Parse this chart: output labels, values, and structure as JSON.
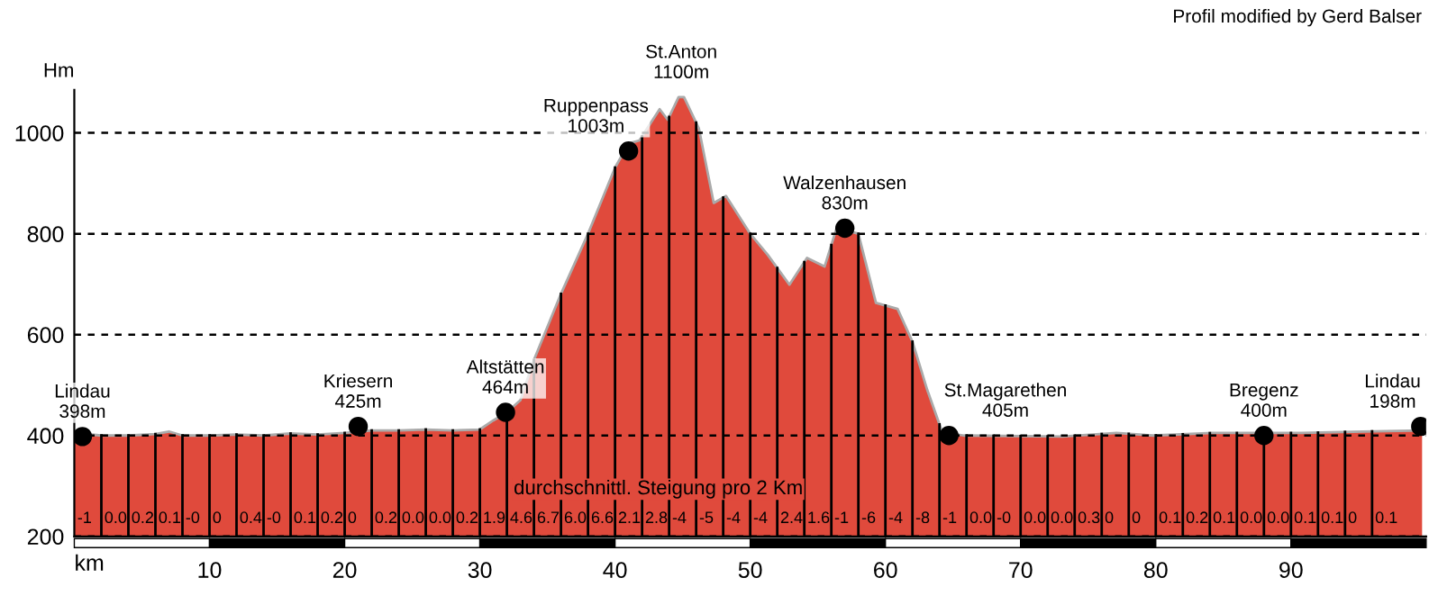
{
  "chart_data": {
    "type": "area",
    "xlabel": "km",
    "ylabel": "Hm",
    "xlim": [
      0,
      100
    ],
    "ylim": [
      200,
      1085
    ],
    "xticks": [
      10,
      20,
      30,
      40,
      50,
      60,
      70,
      80,
      90
    ],
    "yticks": [
      200,
      400,
      600,
      800,
      1000
    ],
    "grid": "y",
    "series": [
      {
        "color": "#e04a3c",
        "x": [
          0,
          2,
          4,
          6,
          7,
          8,
          10,
          12,
          14,
          16,
          18,
          20,
          22,
          24,
          26,
          28,
          30,
          31,
          32,
          33,
          34,
          36,
          38,
          40,
          41,
          41.8,
          43.3,
          43.9,
          44.7,
          45.1,
          46.2,
          47.3,
          48.2,
          50,
          51.3,
          52.9,
          54.2,
          55.5,
          56.4,
          58,
          59.3,
          60.9,
          62,
          63.1,
          64.2,
          65.8,
          73.1,
          77.1,
          79.8,
          84.2,
          90.8,
          95.3,
          99.7
        ],
        "values": [
          405,
          400,
          400,
          403,
          408,
          400,
          400,
          402,
          400,
          404,
          402,
          405,
          410,
          410,
          412,
          410,
          412,
          430,
          446,
          470,
          550,
          681,
          800,
          931,
          979,
          985,
          1047,
          1026,
          1071,
          1071,
          1009,
          861,
          875,
          800,
          758,
          699,
          752,
          735,
          812,
          800,
          663,
          651,
          586,
          490,
          407,
          400,
          398,
          405,
          400,
          405,
          405,
          408,
          410
        ]
      },
      {
        "type": "scatter",
        "color": "#000000",
        "marker": "circle",
        "x": [
          0.6,
          21,
          31.9,
          41,
          57,
          64.7,
          88,
          99.6
        ],
        "values": [
          398,
          418,
          446,
          964,
          811,
          400,
          400,
          418
        ]
      }
    ],
    "annotations": [
      "durchschnittl. Steigung pro 2 Km",
      "Profil modified by Gerd Balser",
      {
        "text": "Lindau\n398m",
        "x": 0.6,
        "y": 398
      },
      {
        "text": "Kriesern\n425m",
        "x": 21,
        "y": 418
      },
      {
        "text": "Altstätten\n464m",
        "x": 31.9,
        "y": 446
      },
      {
        "text": "Ruppenpass\n1003m",
        "x": 41,
        "y": 964
      },
      {
        "text": "St.Anton\n1100m",
        "x": 44.9,
        "y": 1071
      },
      {
        "text": "Walzenhausen\n830m",
        "x": 57,
        "y": 811
      },
      {
        "text": "St.Magarethen\n405m",
        "x": 64.7,
        "y": 400
      },
      {
        "text": "Bregenz\n400m",
        "x": 88,
        "y": 400
      },
      {
        "text": "Lindau\n198m",
        "x": 99.6,
        "y": 418
      },
      {
        "text": "-1",
        "x": 0,
        "y": 200
      },
      {
        "text": "0.0",
        "x": 2,
        "y": 200
      },
      {
        "text": "0.2",
        "x": 4,
        "y": 200
      },
      {
        "text": "0.1",
        "x": 6,
        "y": 200
      },
      {
        "text": "-0",
        "x": 8,
        "y": 200
      },
      {
        "text": "0",
        "x": 10,
        "y": 200
      },
      {
        "text": "0.4",
        "x": 12,
        "y": 200
      },
      {
        "text": "-0",
        "x": 14,
        "y": 200
      },
      {
        "text": "0.1",
        "x": 16,
        "y": 200
      },
      {
        "text": "0.2",
        "x": 18,
        "y": 200
      },
      {
        "text": "0",
        "x": 20,
        "y": 200
      },
      {
        "text": "0.2",
        "x": 22,
        "y": 200
      },
      {
        "text": "0.0",
        "x": 24,
        "y": 200
      },
      {
        "text": "0.0",
        "x": 26,
        "y": 200
      },
      {
        "text": "0.2",
        "x": 28,
        "y": 200
      },
      {
        "text": "1.9",
        "x": 30,
        "y": 200
      },
      {
        "text": "4.6",
        "x": 32,
        "y": 200
      },
      {
        "text": "6.7",
        "x": 34,
        "y": 200
      },
      {
        "text": "6.0",
        "x": 36,
        "y": 200
      },
      {
        "text": "6.6",
        "x": 38,
        "y": 200
      },
      {
        "text": "2.1",
        "x": 40,
        "y": 200
      },
      {
        "text": "2.8",
        "x": 42,
        "y": 200
      },
      {
        "text": "-4",
        "x": 44,
        "y": 200
      },
      {
        "text": "-5",
        "x": 46,
        "y": 200
      },
      {
        "text": "-4",
        "x": 48,
        "y": 200
      },
      {
        "text": "-4",
        "x": 50,
        "y": 200
      },
      {
        "text": "2.4",
        "x": 52,
        "y": 200
      },
      {
        "text": "1.6",
        "x": 54,
        "y": 200
      },
      {
        "text": "-1",
        "x": 56,
        "y": 200
      },
      {
        "text": "-6",
        "x": 58,
        "y": 200
      },
      {
        "text": "-4",
        "x": 60,
        "y": 200
      },
      {
        "text": "-8",
        "x": 62,
        "y": 200
      },
      {
        "text": "-1",
        "x": 64,
        "y": 200
      },
      {
        "text": "0.0",
        "x": 66,
        "y": 200
      },
      {
        "text": "-0",
        "x": 68,
        "y": 200
      },
      {
        "text": "0.0",
        "x": 70,
        "y": 200
      },
      {
        "text": "0.0",
        "x": 72,
        "y": 200
      },
      {
        "text": "0.3",
        "x": 74,
        "y": 200
      },
      {
        "text": "0",
        "x": 76,
        "y": 200
      },
      {
        "text": "0",
        "x": 78,
        "y": 200
      },
      {
        "text": "0.1",
        "x": 80,
        "y": 200
      },
      {
        "text": "0.2",
        "x": 82,
        "y": 200
      },
      {
        "text": "0.1",
        "x": 84,
        "y": 200
      },
      {
        "text": "0.0",
        "x": 86,
        "y": 200
      },
      {
        "text": "0.0",
        "x": 88,
        "y": 200
      },
      {
        "text": "0.1",
        "x": 90,
        "y": 200
      },
      {
        "text": "0.1",
        "x": 92,
        "y": 200
      },
      {
        "text": "0",
        "x": 94,
        "y": 200
      },
      {
        "text": "0.1",
        "x": 96,
        "y": 200
      }
    ]
  }
}
